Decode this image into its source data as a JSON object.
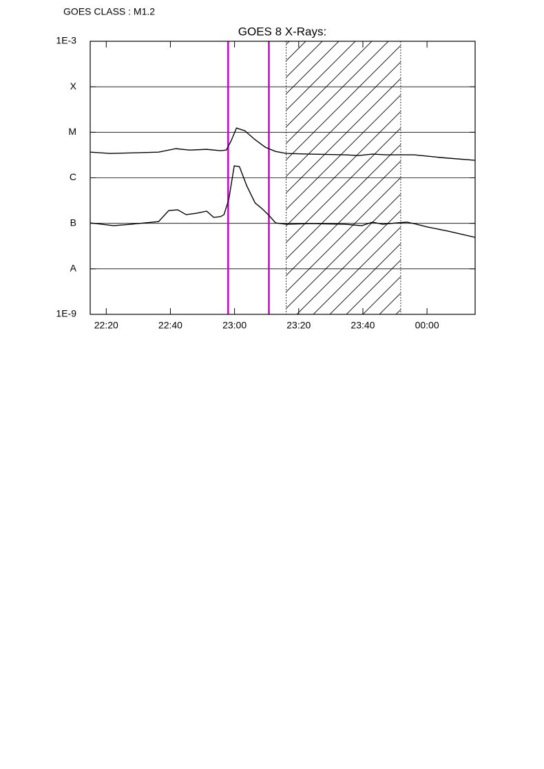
{
  "header": "GOES CLASS : M1.2",
  "chart_data": {
    "type": "line",
    "title": "GOES 8 X-Rays:",
    "log_y": true,
    "grid": true,
    "xlim": [
      15,
      135
    ],
    "xticks": [
      {
        "value": 20,
        "label": "22:20"
      },
      {
        "value": 40,
        "label": "22:40"
      },
      {
        "value": 60,
        "label": "23:00"
      },
      {
        "value": 80,
        "label": "23:20"
      },
      {
        "value": 100,
        "label": "23:40"
      },
      {
        "value": 120,
        "label": "00:00"
      }
    ],
    "ylim": [
      1e-09,
      0.001
    ],
    "yticks": [
      {
        "value": 1e-09,
        "label": "1E-9"
      },
      {
        "value": 1e-08,
        "label": "A"
      },
      {
        "value": 1e-07,
        "label": "B"
      },
      {
        "value": 1e-06,
        "label": "C"
      },
      {
        "value": 1e-05,
        "label": "M"
      },
      {
        "value": 0.0001,
        "label": "X"
      },
      {
        "value": 0.001,
        "label": "1E-3"
      }
    ],
    "vlines": [
      {
        "x": 58,
        "color": "#cc00cc"
      },
      {
        "x": 70.7,
        "color": "#cc00cc"
      }
    ],
    "shaded_region": [
      76.1,
      111.8
    ],
    "series": [
      {
        "color": "#000000",
        "x": [
          15,
          21.2,
          29.8,
          36.3,
          41.7,
          46,
          51.3,
          55.6,
          57.4,
          58.9,
          60.6,
          63.2,
          66.4,
          69.6,
          72.8,
          76.1,
          83.6,
          94.4,
          98.7,
          103,
          107.3,
          115.9,
          124.5,
          135
        ],
        "values": [
          3.67e-06,
          3.43e-06,
          3.55e-06,
          3.67e-06,
          4.37e-06,
          4.07e-06,
          4.22e-06,
          3.94e-06,
          4.07e-06,
          6.41e-06,
          1.24e-05,
          1.08e-05,
          6.87e-06,
          4.69e-06,
          3.8e-06,
          3.43e-06,
          3.31e-06,
          3.2e-06,
          3.09e-06,
          3.31e-06,
          3.2e-06,
          3.2e-06,
          2.78e-06,
          2.42e-06
        ]
      },
      {
        "color": "#000000",
        "x": [
          15,
          22.3,
          27.7,
          32,
          36.3,
          39.5,
          42.3,
          44.9,
          48.1,
          51.3,
          53.5,
          55.6,
          56.7,
          58.2,
          59.9,
          61.5,
          63.8,
          66.4,
          68.5,
          70.7,
          72.8,
          76.1,
          83.6,
          94.4,
          99.7,
          103,
          106.2,
          110.5,
          113.7,
          115.9,
          120.2,
          126.6,
          135
        ],
        "values": [
          1.02e-07,
          8.89e-08,
          9.53e-08,
          1.02e-07,
          1.09e-07,
          1.91e-07,
          1.98e-07,
          1.55e-07,
          1.66e-07,
          1.85e-07,
          1.35e-07,
          1.4e-07,
          1.55e-07,
          3.33e-07,
          1.83e-06,
          1.77e-06,
          6.68e-07,
          2.8e-07,
          2.12e-07,
          1.5e-07,
          1.02e-07,
          9.53e-08,
          9.86e-08,
          9.53e-08,
          8.89e-08,
          1.06e-07,
          9.53e-08,
          1.02e-07,
          1.06e-07,
          9.86e-08,
          8.28e-08,
          6.73e-08,
          4.92e-08
        ]
      }
    ]
  }
}
